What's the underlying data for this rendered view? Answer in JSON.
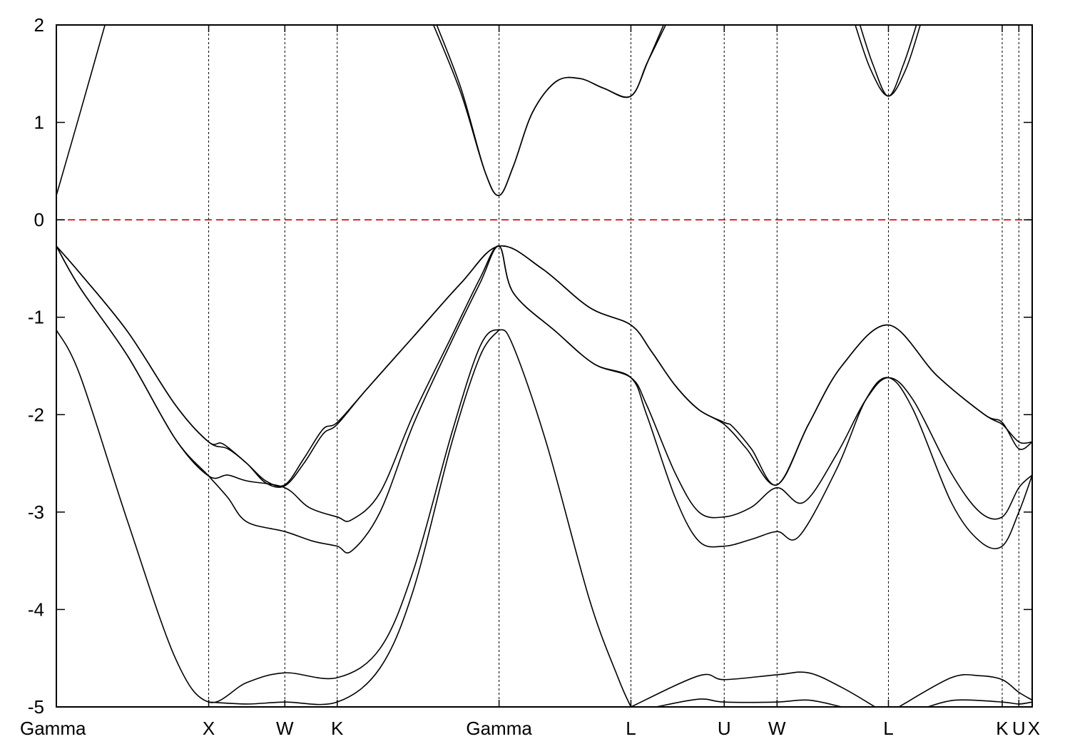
{
  "chart_data": {
    "type": "line",
    "title": "",
    "xlabel": "",
    "ylabel": "",
    "ylim": [
      -5,
      2
    ],
    "y_ticks": [
      2,
      1,
      0,
      -1,
      -2,
      -3,
      -4,
      -5
    ],
    "xlim": [
      0,
      20.5
    ],
    "k_points": [
      {
        "label": "Gamma",
        "x": 0
      },
      {
        "label": "X",
        "x": 3.2
      },
      {
        "label": "W",
        "x": 4.8
      },
      {
        "label": "K",
        "x": 5.9
      },
      {
        "label": "Gamma",
        "x": 9.3
      },
      {
        "label": "L",
        "x": 12.07
      },
      {
        "label": "U",
        "x": 14.03
      },
      {
        "label": "W",
        "x": 15.14
      },
      {
        "label": "L",
        "x": 17.48
      },
      {
        "label": "K",
        "x": 19.87
      },
      {
        "label": "U",
        "x": 20.22
      },
      {
        "label": "X",
        "x": 20.5
      }
    ],
    "reference_line": {
      "y": 0,
      "color": "#cc0000",
      "style": "dashed"
    },
    "grid": false,
    "legend": "none",
    "series": [
      {
        "points": [
          [
            0,
            0.25
          ],
          [
            0.5,
            1.1
          ],
          [
            1.05,
            2.05
          ]
        ]
      },
      {
        "points": [
          [
            7.88,
            2.05
          ],
          [
            8.5,
            1.3
          ],
          [
            9.0,
            0.5
          ],
          [
            9.3,
            0.25
          ],
          [
            9.6,
            0.55
          ],
          [
            10.0,
            1.1
          ],
          [
            10.5,
            1.42
          ],
          [
            11.0,
            1.45
          ],
          [
            11.5,
            1.35
          ],
          [
            12.07,
            1.27
          ],
          [
            12.4,
            1.6
          ],
          [
            12.8,
            2.05
          ]
        ]
      },
      {
        "points": [
          [
            7.95,
            2.05
          ],
          [
            8.5,
            1.35
          ],
          [
            9.0,
            0.5
          ],
          [
            9.3,
            0.25
          ],
          [
            9.6,
            0.55
          ],
          [
            10.0,
            1.1
          ],
          [
            10.5,
            1.42
          ],
          [
            11.0,
            1.45
          ],
          [
            11.5,
            1.35
          ],
          [
            12.07,
            1.27
          ],
          [
            12.45,
            1.65
          ],
          [
            12.85,
            2.05
          ]
        ]
      },
      {
        "points": [
          [
            16.75,
            2.05
          ],
          [
            17.1,
            1.55
          ],
          [
            17.48,
            1.27
          ],
          [
            17.85,
            1.55
          ],
          [
            18.18,
            2.05
          ]
        ]
      },
      {
        "points": [
          [
            16.85,
            2.05
          ],
          [
            17.15,
            1.6
          ],
          [
            17.48,
            1.27
          ],
          [
            17.8,
            1.6
          ],
          [
            18.1,
            2.05
          ]
        ]
      },
      {
        "points": [
          [
            0,
            -0.27
          ],
          [
            0.5,
            -0.55
          ],
          [
            1.5,
            -1.15
          ],
          [
            2.5,
            -1.9
          ],
          [
            3.2,
            -2.28
          ],
          [
            3.6,
            -2.35
          ],
          [
            4.0,
            -2.5
          ],
          [
            4.4,
            -2.7
          ],
          [
            4.8,
            -2.73
          ],
          [
            5.2,
            -2.5
          ],
          [
            5.6,
            -2.2
          ],
          [
            5.9,
            -2.1
          ],
          [
            6.5,
            -1.75
          ],
          [
            7.5,
            -1.2
          ],
          [
            8.5,
            -0.65
          ],
          [
            9.3,
            -0.27
          ],
          [
            10.2,
            -0.5
          ],
          [
            11.2,
            -0.9
          ],
          [
            12.07,
            -1.08
          ],
          [
            12.5,
            -1.35
          ],
          [
            13.0,
            -1.7
          ],
          [
            13.5,
            -1.95
          ],
          [
            14.03,
            -2.1
          ],
          [
            14.5,
            -2.35
          ],
          [
            15.14,
            -2.72
          ],
          [
            15.8,
            -2.1
          ],
          [
            16.5,
            -1.5
          ],
          [
            17.48,
            -1.08
          ],
          [
            18.5,
            -1.6
          ],
          [
            19.5,
            -2.0
          ],
          [
            19.87,
            -2.1
          ],
          [
            20.22,
            -2.28
          ],
          [
            20.5,
            -2.28
          ]
        ]
      },
      {
        "points": [
          [
            0,
            -0.27
          ],
          [
            0.5,
            -0.55
          ],
          [
            1.5,
            -1.15
          ],
          [
            2.5,
            -1.9
          ],
          [
            3.2,
            -2.28
          ],
          [
            3.5,
            -2.3
          ],
          [
            4.0,
            -2.5
          ],
          [
            4.4,
            -2.68
          ],
          [
            4.8,
            -2.72
          ],
          [
            5.2,
            -2.45
          ],
          [
            5.6,
            -2.15
          ],
          [
            5.9,
            -2.08
          ],
          [
            6.5,
            -1.75
          ],
          [
            7.5,
            -1.2
          ],
          [
            8.5,
            -0.65
          ],
          [
            9.3,
            -0.27
          ],
          [
            10.2,
            -0.5
          ],
          [
            11.2,
            -0.9
          ],
          [
            12.07,
            -1.08
          ],
          [
            12.5,
            -1.35
          ],
          [
            13.0,
            -1.7
          ],
          [
            13.5,
            -1.95
          ],
          [
            14.03,
            -2.08
          ],
          [
            14.2,
            -2.12
          ],
          [
            14.6,
            -2.35
          ],
          [
            15.14,
            -2.72
          ],
          [
            15.8,
            -2.1
          ],
          [
            16.5,
            -1.5
          ],
          [
            17.48,
            -1.08
          ],
          [
            18.5,
            -1.6
          ],
          [
            19.5,
            -2.0
          ],
          [
            19.87,
            -2.08
          ],
          [
            20.22,
            -2.35
          ],
          [
            20.5,
            -2.28
          ]
        ]
      },
      {
        "points": [
          [
            0,
            -0.27
          ],
          [
            0.5,
            -0.7
          ],
          [
            1.5,
            -1.4
          ],
          [
            2.5,
            -2.25
          ],
          [
            3.2,
            -2.63
          ],
          [
            3.6,
            -2.62
          ],
          [
            4.0,
            -2.68
          ],
          [
            4.8,
            -2.75
          ],
          [
            5.3,
            -2.95
          ],
          [
            5.9,
            -3.05
          ],
          [
            6.2,
            -3.08
          ],
          [
            6.8,
            -2.8
          ],
          [
            7.5,
            -2.0
          ],
          [
            8.3,
            -1.2
          ],
          [
            8.9,
            -0.6
          ],
          [
            9.3,
            -0.27
          ],
          [
            9.6,
            -0.75
          ],
          [
            10.5,
            -1.15
          ],
          [
            11.3,
            -1.48
          ],
          [
            12.07,
            -1.62
          ],
          [
            12.4,
            -1.9
          ],
          [
            13.0,
            -2.6
          ],
          [
            13.5,
            -3.0
          ],
          [
            14.03,
            -3.05
          ],
          [
            14.6,
            -2.95
          ],
          [
            15.14,
            -2.75
          ],
          [
            15.7,
            -2.9
          ],
          [
            16.4,
            -2.4
          ],
          [
            17.0,
            -1.85
          ],
          [
            17.48,
            -1.62
          ],
          [
            18.0,
            -1.85
          ],
          [
            18.8,
            -2.6
          ],
          [
            19.4,
            -3.0
          ],
          [
            19.87,
            -3.05
          ],
          [
            20.22,
            -2.75
          ],
          [
            20.5,
            -2.62
          ]
        ]
      },
      {
        "points": [
          [
            0,
            -0.27
          ],
          [
            0.5,
            -0.7
          ],
          [
            1.5,
            -1.4
          ],
          [
            2.5,
            -2.25
          ],
          [
            3.2,
            -2.63
          ],
          [
            3.6,
            -2.85
          ],
          [
            4.0,
            -3.1
          ],
          [
            4.8,
            -3.2
          ],
          [
            5.4,
            -3.3
          ],
          [
            5.9,
            -3.35
          ],
          [
            6.2,
            -3.4
          ],
          [
            6.8,
            -3.0
          ],
          [
            7.5,
            -2.1
          ],
          [
            8.3,
            -1.25
          ],
          [
            8.9,
            -0.65
          ],
          [
            9.3,
            -0.27
          ],
          [
            9.6,
            -0.75
          ],
          [
            10.5,
            -1.15
          ],
          [
            11.3,
            -1.48
          ],
          [
            12.07,
            -1.62
          ],
          [
            12.4,
            -2.0
          ],
          [
            13.0,
            -2.85
          ],
          [
            13.5,
            -3.3
          ],
          [
            14.03,
            -3.35
          ],
          [
            14.6,
            -3.28
          ],
          [
            15.14,
            -3.2
          ],
          [
            15.6,
            -3.25
          ],
          [
            16.4,
            -2.55
          ],
          [
            17.0,
            -1.85
          ],
          [
            17.48,
            -1.62
          ],
          [
            18.0,
            -1.95
          ],
          [
            18.8,
            -2.9
          ],
          [
            19.4,
            -3.3
          ],
          [
            19.87,
            -3.35
          ],
          [
            20.22,
            -3.0
          ],
          [
            20.5,
            -2.62
          ]
        ]
      },
      {
        "points": [
          [
            0,
            -1.13
          ],
          [
            0.5,
            -1.6
          ],
          [
            1.5,
            -3.1
          ],
          [
            2.5,
            -4.5
          ],
          [
            3.2,
            -4.95
          ],
          [
            4.0,
            -4.75
          ],
          [
            4.8,
            -4.65
          ],
          [
            5.9,
            -4.7
          ],
          [
            6.8,
            -4.4
          ],
          [
            7.5,
            -3.6
          ],
          [
            8.3,
            -2.2
          ],
          [
            8.9,
            -1.3
          ],
          [
            9.3,
            -1.13
          ],
          [
            9.6,
            -1.3
          ],
          [
            10.3,
            -2.3
          ],
          [
            11.2,
            -3.9
          ],
          [
            11.8,
            -4.7
          ],
          [
            12.07,
            -5.0
          ]
        ]
      },
      {
        "points": [
          [
            3.2,
            -4.95
          ],
          [
            4.0,
            -4.97
          ],
          [
            4.8,
            -4.95
          ],
          [
            5.9,
            -4.95
          ],
          [
            6.8,
            -4.6
          ],
          [
            7.5,
            -3.8
          ],
          [
            8.3,
            -2.3
          ],
          [
            8.9,
            -1.4
          ],
          [
            9.3,
            -1.13
          ]
        ]
      },
      {
        "points": [
          [
            12.07,
            -5.0
          ],
          [
            13.5,
            -4.68
          ],
          [
            14.03,
            -4.72
          ],
          [
            15.14,
            -4.67
          ],
          [
            15.8,
            -4.65
          ],
          [
            16.5,
            -4.8
          ],
          [
            17.2,
            -5.0
          ]
        ]
      },
      {
        "points": [
          [
            12.6,
            -5.0
          ],
          [
            13.5,
            -4.92
          ],
          [
            14.03,
            -4.95
          ],
          [
            15.14,
            -4.95
          ],
          [
            15.8,
            -4.93
          ],
          [
            16.5,
            -5.0
          ]
        ]
      },
      {
        "points": [
          [
            17.7,
            -5.0
          ],
          [
            18.8,
            -4.7
          ],
          [
            19.4,
            -4.68
          ],
          [
            19.87,
            -4.72
          ],
          [
            20.22,
            -4.85
          ],
          [
            20.5,
            -4.93
          ]
        ]
      },
      {
        "points": [
          [
            18.3,
            -5.0
          ],
          [
            18.9,
            -4.93
          ],
          [
            19.87,
            -4.95
          ],
          [
            20.22,
            -4.97
          ],
          [
            20.5,
            -4.95
          ]
        ]
      }
    ]
  }
}
